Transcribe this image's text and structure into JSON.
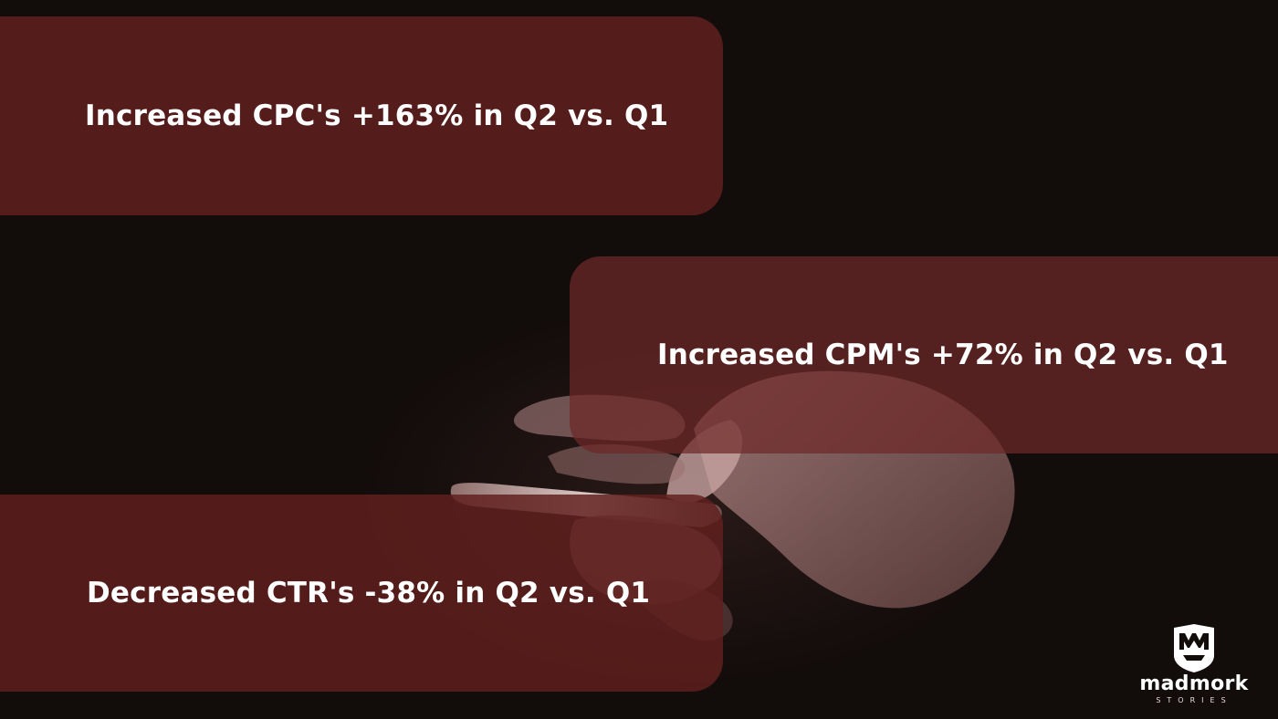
{
  "stats": [
    {
      "text": "Increased CPC's +163% in Q2 vs. Q1"
    },
    {
      "text": "Increased CPM's +72% in Q2 vs. Q1"
    },
    {
      "text": "Decreased CTR's -38% in Q2 vs. Q1"
    }
  ],
  "brand": {
    "name": "madmork",
    "tagline": "STORIES"
  },
  "background": {
    "description_icon": "hands-holding-phone-photo"
  },
  "colors": {
    "card": "#60201e",
    "background": "#120c0b",
    "text": "#ffffff"
  }
}
